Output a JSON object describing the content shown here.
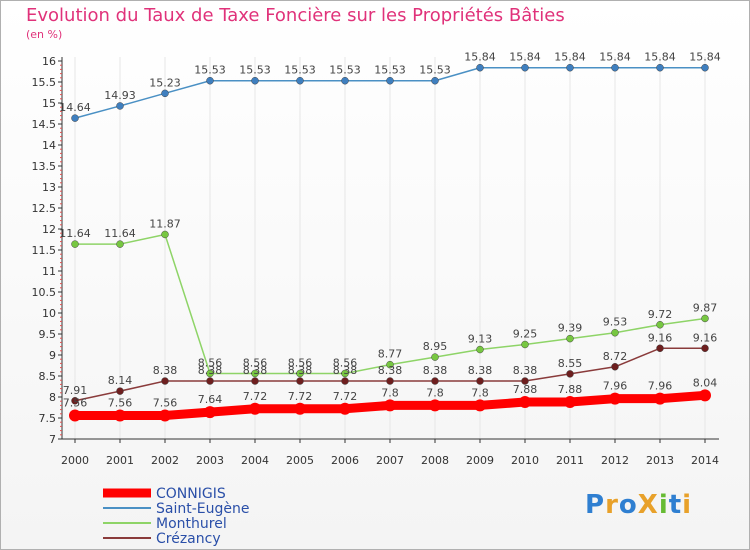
{
  "chart_data": {
    "type": "line",
    "title": "Evolution du Taux de Taxe Foncière sur les Propriétés Bâties",
    "ylabel": "(en %)",
    "xlabel": "",
    "ylim": [
      7,
      16
    ],
    "y_ticks": [
      "7",
      "7.5",
      "8",
      "8.5",
      "9",
      "9.5",
      "10",
      "10.5",
      "11",
      "11.5",
      "12",
      "12.5",
      "13",
      "13.5",
      "14",
      "14.5",
      "15",
      "15.5",
      "16"
    ],
    "categories": [
      "2000",
      "2001",
      "2002",
      "2003",
      "2004",
      "2005",
      "2006",
      "2007",
      "2008",
      "2009",
      "2010",
      "2011",
      "2012",
      "2013",
      "2014"
    ],
    "series": [
      {
        "name": "Saint-Eugène",
        "color": "#4a90c4",
        "marker": "#3f7fbf",
        "values": [
          14.64,
          14.93,
          15.23,
          15.53,
          15.53,
          15.53,
          15.53,
          15.53,
          15.53,
          15.84,
          15.84,
          15.84,
          15.84,
          15.84,
          15.84
        ],
        "labels": [
          "14.64",
          "14.93",
          "15.23",
          "15.53",
          "15.53",
          "15.53",
          "15.53",
          "15.53",
          "15.53",
          "15.84",
          "15.84",
          "15.84",
          "15.84",
          "15.84",
          "15.84"
        ]
      },
      {
        "name": "Monthurel",
        "color": "#8ed467",
        "marker": "#77c741",
        "values": [
          11.64,
          11.64,
          11.87,
          8.56,
          8.56,
          8.56,
          8.56,
          8.77,
          8.95,
          9.13,
          9.25,
          9.39,
          9.53,
          9.72,
          9.87
        ],
        "labels": [
          "11.64",
          "11.64",
          "11.87",
          "8.56",
          "8.56",
          "8.56",
          "8.56",
          "8.77",
          "8.95",
          "9.13",
          "9.25",
          "9.39",
          "9.53",
          "9.72",
          "9.87"
        ]
      },
      {
        "name": "Crézancy",
        "color": "#8a3b3b",
        "marker": "#6e1f1f",
        "values": [
          7.91,
          8.14,
          8.38,
          8.38,
          8.38,
          8.38,
          8.38,
          8.38,
          8.38,
          8.38,
          8.38,
          8.55,
          8.72,
          9.16,
          9.16
        ],
        "labels": [
          "7.91",
          "8.14",
          "8.38",
          "8.38",
          "8.38",
          "8.38",
          "8.38",
          "8.38",
          "8.38",
          "8.38",
          "8.38",
          "8.55",
          "8.72",
          "9.16",
          "9.16"
        ]
      },
      {
        "name": "CONNIGIS",
        "color": "#ff0000",
        "marker": "#ff0000",
        "values": [
          7.56,
          7.56,
          7.56,
          7.64,
          7.72,
          7.72,
          7.72,
          7.8,
          7.8,
          7.8,
          7.88,
          7.88,
          7.96,
          7.96,
          8.04
        ],
        "labels": [
          "7.56",
          "7.56",
          "7.56",
          "7.64",
          "7.72",
          "7.72",
          "7.72",
          "7.8",
          "7.8",
          "7.8",
          "7.88",
          "7.88",
          "7.96",
          "7.96",
          "8.04"
        ]
      }
    ],
    "legend": [
      "CONNIGIS",
      "Saint-Eugène",
      "Monthurel",
      "Crézancy"
    ],
    "legend_position": "bottom-left"
  },
  "logo": {
    "text": "ProXiti"
  }
}
